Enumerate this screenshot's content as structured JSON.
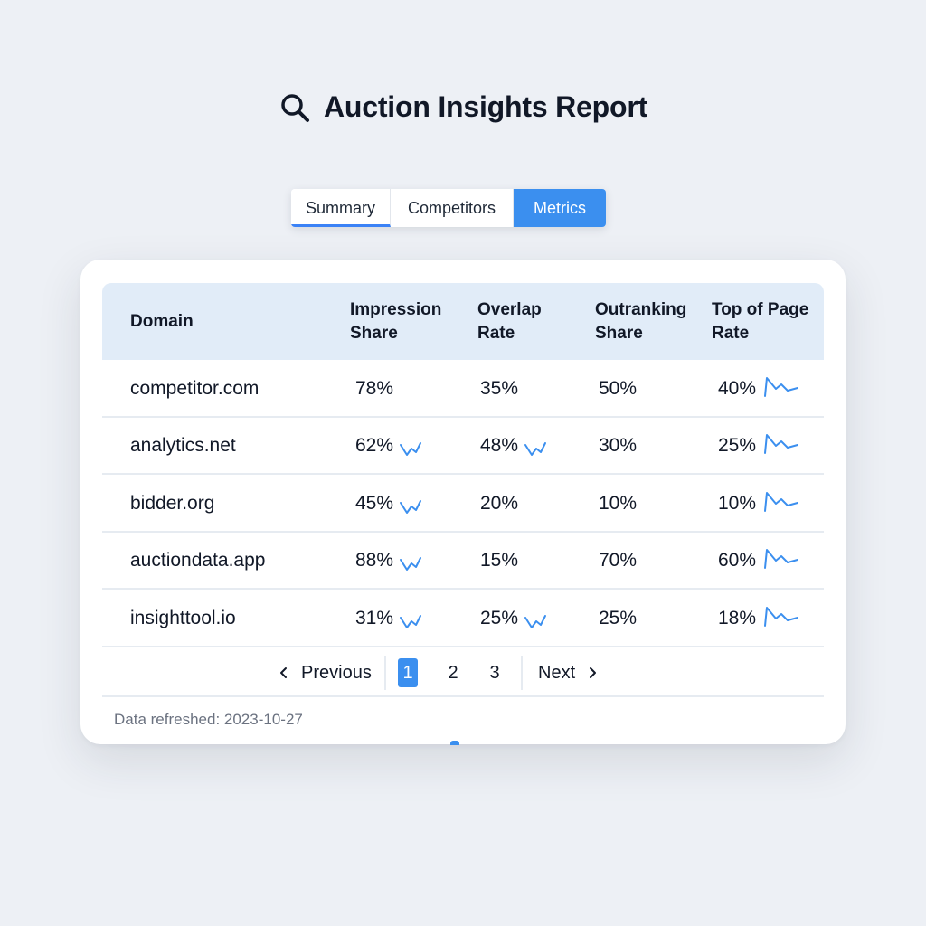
{
  "header": {
    "title": "Auction Insights Report",
    "icon": "search-icon"
  },
  "tabs": [
    {
      "label": "Summary",
      "state": "underlined"
    },
    {
      "label": "Competitors",
      "state": "default"
    },
    {
      "label": "Metrics",
      "state": "selected"
    }
  ],
  "table": {
    "columns": {
      "domain": "Domain",
      "impression_share": [
        "Impression",
        "Share"
      ],
      "overlap_rate": [
        "Overlap",
        "Rate"
      ],
      "outranking_share": [
        "Outranking",
        "Share"
      ],
      "top_of_page_rate": [
        "Top of Page",
        "Rate"
      ]
    },
    "rows": [
      {
        "domain": "competitor.com",
        "impression_share": "78%",
        "overlap_rate": "35%",
        "outranking_share": "50%",
        "top_of_page_rate": "40%",
        "imp_trend": false,
        "ovl_trend": false
      },
      {
        "domain": "analytics.net",
        "impression_share": "62%",
        "overlap_rate": "48%",
        "outranking_share": "30%",
        "top_of_page_rate": "25%",
        "imp_trend": true,
        "ovl_trend": true
      },
      {
        "domain": "bidder.org",
        "impression_share": "45%",
        "overlap_rate": "20%",
        "outranking_share": "10%",
        "top_of_page_rate": "10%",
        "imp_trend": true,
        "ovl_trend": false
      },
      {
        "domain": "auctiondata.app",
        "impression_share": "88%",
        "overlap_rate": "15%",
        "outranking_share": "70%",
        "top_of_page_rate": "60%",
        "imp_trend": true,
        "ovl_trend": false
      },
      {
        "domain": "insighttool.io",
        "impression_share": "31%",
        "overlap_rate": "25%",
        "outranking_share": "25%",
        "top_of_page_rate": "18%",
        "imp_trend": true,
        "ovl_trend": true
      }
    ]
  },
  "pagination": {
    "previous_label": "Previous",
    "next_label": "Next",
    "pages": [
      "1",
      "2",
      "3"
    ],
    "current": "1"
  },
  "footer": {
    "refreshed_text": "Data refreshed: 2023-10-27"
  },
  "colors": {
    "accent": "#3b8fef",
    "header_bg": "#e1ecf8",
    "background": "#edf0f5"
  }
}
